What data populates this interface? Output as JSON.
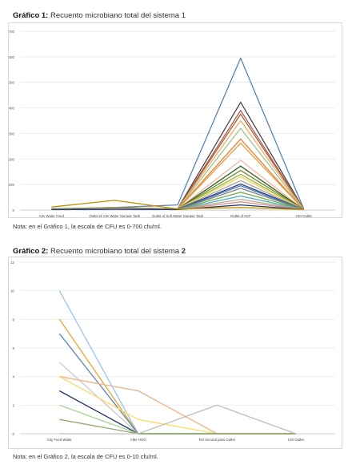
{
  "chart1": {
    "heading_bold": "Gráfico 1:",
    "heading_text": "Recuento microbiano total del sistema 1",
    "note": "Nota: en el Gráfico 1, la escala de CFU es 0-700 cfu/ml."
  },
  "chart2": {
    "heading_bold": "Gráfico 2:",
    "heading_text": "Recuento microbiano total del sistema",
    "heading_num": "2",
    "note": "Nota: en el Gráfico 2, la escala de CFU es 0-10 cfu/ml."
  },
  "chart_data": [
    {
      "type": "line",
      "title": "Gráfico 1: Recuento microbiano total del sistema 1",
      "categories": [
        "City Water Feed",
        "Outlet of City Water Storage Tank",
        "Outlet of Soft Water Storage Tank",
        "Outlet of ACF",
        "CDI Outlet"
      ],
      "ylim": [
        0,
        700
      ],
      "yticks": [
        0,
        100,
        200,
        300,
        400,
        500,
        600,
        700
      ],
      "grid": true,
      "series": [
        {
          "color": "#5b84b1",
          "values": [
            5,
            10,
            20,
            595,
            5
          ]
        },
        {
          "color": "#444444",
          "values": [
            3,
            8,
            5,
            422,
            3
          ]
        },
        {
          "color": "#c0504d",
          "values": [
            4,
            9,
            4,
            390,
            3
          ]
        },
        {
          "color": "#9a6a3b",
          "values": [
            4,
            10,
            4,
            375,
            3
          ]
        },
        {
          "color": "#f0ab6d",
          "values": [
            3,
            8,
            4,
            350,
            2
          ]
        },
        {
          "color": "#9bc58b",
          "values": [
            3,
            8,
            4,
            320,
            2
          ]
        },
        {
          "color": "#ed7d31",
          "values": [
            2,
            6,
            4,
            278,
            2
          ]
        },
        {
          "color": "#e6a14a",
          "values": [
            2,
            6,
            3,
            262,
            2
          ]
        },
        {
          "color": "#f4b6a0",
          "values": [
            2,
            6,
            3,
            195,
            2
          ]
        },
        {
          "color": "#3b5b2e",
          "values": [
            2,
            5,
            3,
            172,
            2
          ]
        },
        {
          "color": "#6b8e23",
          "values": [
            2,
            5,
            3,
            155,
            2
          ]
        },
        {
          "color": "#8fb35a",
          "values": [
            2,
            5,
            3,
            140,
            2
          ]
        },
        {
          "color": "#ffd24a",
          "values": [
            2,
            5,
            3,
            130,
            2
          ]
        },
        {
          "color": "#a6a6a6",
          "values": [
            2,
            5,
            3,
            115,
            2
          ]
        },
        {
          "color": "#264478",
          "values": [
            2,
            4,
            3,
            102,
            2
          ]
        },
        {
          "color": "#4472c4",
          "values": [
            2,
            4,
            2,
            95,
            2
          ]
        },
        {
          "color": "#7f7f7f",
          "values": [
            2,
            4,
            2,
            85,
            2
          ]
        },
        {
          "color": "#70ad47",
          "values": [
            2,
            4,
            2,
            70,
            2
          ]
        },
        {
          "color": "#4bacc6",
          "values": [
            2,
            4,
            2,
            55,
            2
          ]
        },
        {
          "color": "#b8a88a",
          "values": [
            2,
            4,
            2,
            42,
            2
          ]
        },
        {
          "color": "#d98b8b",
          "values": [
            2,
            3,
            2,
            32,
            2
          ]
        },
        {
          "color": "#1f3864",
          "values": [
            2,
            3,
            2,
            20,
            2
          ]
        },
        {
          "color": "#bf9000",
          "values": [
            12,
            38,
            4,
            10,
            2
          ]
        }
      ]
    },
    {
      "type": "line",
      "title": "Gráfico 2: Recuento microbiano total del sistema 2",
      "categories": [
        "City Feed Water",
        "After HOG",
        "RO Second pass Outlet",
        "CDI Outlet"
      ],
      "ylim": [
        0,
        12
      ],
      "yticks": [
        0,
        2,
        4,
        6,
        8,
        10,
        12
      ],
      "grid": true,
      "series": [
        {
          "color": "#9dc3e6",
          "values": [
            10,
            0,
            0,
            0
          ]
        },
        {
          "color": "#e6a530",
          "values": [
            8,
            0,
            0,
            0
          ]
        },
        {
          "color": "#5b84b1",
          "values": [
            7,
            0,
            0,
            0
          ]
        },
        {
          "color": "#c9c9c9",
          "values": [
            5,
            0,
            0,
            0
          ]
        },
        {
          "color": "#f4c87a",
          "values": [
            4,
            3,
            0,
            0
          ]
        },
        {
          "color": "#e8b89a",
          "values": [
            4,
            3,
            0,
            0
          ]
        },
        {
          "color": "#ffd966",
          "values": [
            4,
            1,
            0,
            0
          ]
        },
        {
          "color": "#1f3864",
          "values": [
            3,
            0,
            0,
            0
          ]
        },
        {
          "color": "#a9d18e",
          "values": [
            2,
            0,
            0,
            0
          ]
        },
        {
          "color": "#8faa6e",
          "values": [
            1,
            0,
            0,
            0
          ]
        },
        {
          "color": "#bdbdbd",
          "values": [
            0,
            0,
            2,
            0
          ]
        }
      ]
    }
  ]
}
